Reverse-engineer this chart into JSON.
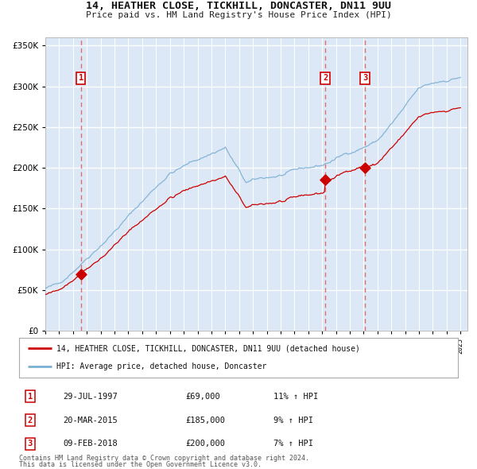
{
  "title": "14, HEATHER CLOSE, TICKHILL, DONCASTER, DN11 9UU",
  "subtitle": "Price paid vs. HM Land Registry's House Price Index (HPI)",
  "legend_line1": "14, HEATHER CLOSE, TICKHILL, DONCASTER, DN11 9UU (detached house)",
  "legend_line2": "HPI: Average price, detached house, Doncaster",
  "footer1": "Contains HM Land Registry data © Crown copyright and database right 2024.",
  "footer2": "This data is licensed under the Open Government Licence v3.0.",
  "sale_points": [
    {
      "label": "1",
      "year": 1997.57,
      "price": 69000,
      "date": "29-JUL-1997",
      "pct": "11%",
      "dir": "↑"
    },
    {
      "label": "2",
      "year": 2015.22,
      "price": 185000,
      "date": "20-MAR-2015",
      "pct": "9%",
      "dir": "↑"
    },
    {
      "label": "3",
      "year": 2018.1,
      "price": 200000,
      "date": "09-FEB-2018",
      "pct": "7%",
      "dir": "↑"
    }
  ],
  "xmin": 1995.0,
  "xmax": 2025.5,
  "ymin": 0,
  "ymax": 360000,
  "yticks": [
    0,
    50000,
    100000,
    150000,
    200000,
    250000,
    300000,
    350000
  ],
  "background_color": "#dce8f5",
  "grid_color": "#ffffff",
  "red_line_color": "#cc0000",
  "blue_line_color": "#7bafd4",
  "dashed_color": "#e06060"
}
